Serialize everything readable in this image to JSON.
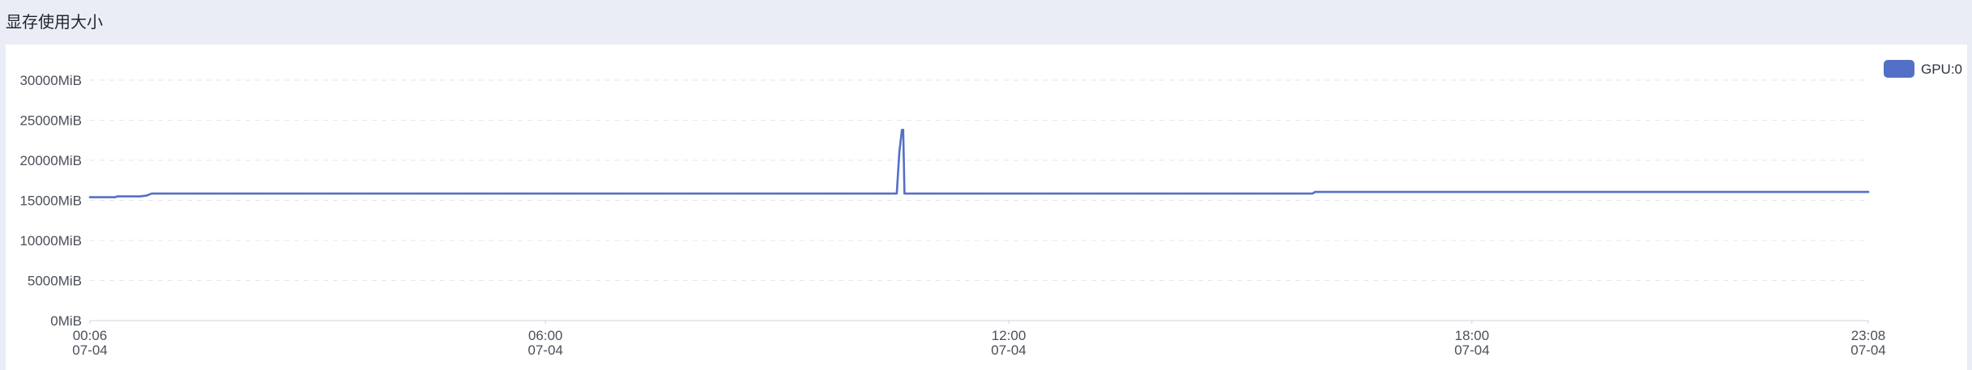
{
  "panel": {
    "title": "显存使用大小"
  },
  "chart_data": {
    "type": "line",
    "title": "显存使用大小",
    "xlabel": "",
    "ylabel": "",
    "x_domain": [
      "00:06",
      "23:08"
    ],
    "ylim": [
      0,
      30000
    ],
    "y_ticks": [
      {
        "value": 0,
        "label": "0MiB"
      },
      {
        "value": 5000,
        "label": "5000MiB"
      },
      {
        "value": 10000,
        "label": "10000MiB"
      },
      {
        "value": 15000,
        "label": "15000MiB"
      },
      {
        "value": 20000,
        "label": "20000MiB"
      },
      {
        "value": 25000,
        "label": "25000MiB"
      },
      {
        "value": 30000,
        "label": "30000MiB"
      }
    ],
    "x_ticks": [
      {
        "time": "00:06",
        "date": "07-04"
      },
      {
        "time": "06:00",
        "date": "07-04"
      },
      {
        "time": "12:00",
        "date": "07-04"
      },
      {
        "time": "18:00",
        "date": "07-04"
      },
      {
        "time": "23:08",
        "date": "07-04"
      }
    ],
    "grid": true,
    "legend_position": "top-right",
    "series": [
      {
        "name": "GPU:0",
        "color": "#5470c6",
        "points": [
          {
            "x": "00:06",
            "y": 15400
          },
          {
            "x": "00:26",
            "y": 15400
          },
          {
            "x": "00:27",
            "y": 15500
          },
          {
            "x": "00:45",
            "y": 15500
          },
          {
            "x": "00:50",
            "y": 15600
          },
          {
            "x": "00:54",
            "y": 15850
          },
          {
            "x": "10:33",
            "y": 15850
          },
          {
            "x": "10:35",
            "y": 21000
          },
          {
            "x": "10:37",
            "y": 23800
          },
          {
            "x": "10:38",
            "y": 23800
          },
          {
            "x": "10:39",
            "y": 15850
          },
          {
            "x": "15:56",
            "y": 15850
          },
          {
            "x": "15:58",
            "y": 16050
          },
          {
            "x": "23:08",
            "y": 16050
          }
        ]
      }
    ]
  }
}
